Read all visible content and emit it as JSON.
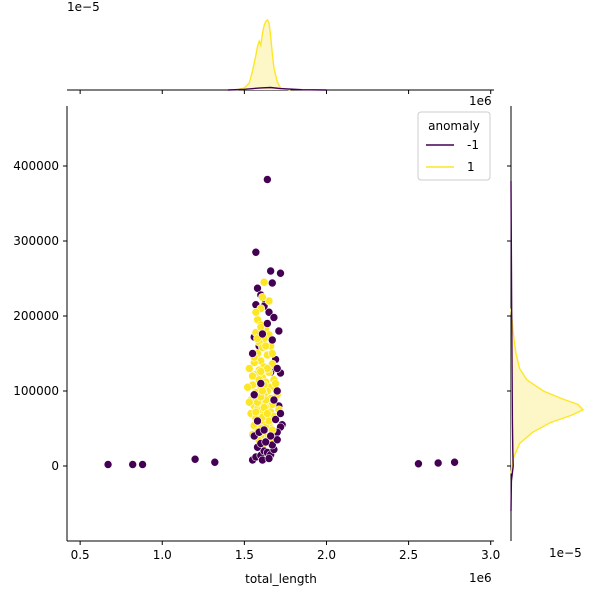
{
  "chart_data": {
    "type": "scatter",
    "title": "",
    "xlabel": "total_length",
    "ylabel": "",
    "x_multiplier": "1e6",
    "y_multiplier_top": "1e6",
    "marginal_multiplier_top": "1e−5",
    "marginal_multiplier_right": "1e−5",
    "xlim": [
      0.42,
      3.02
    ],
    "ylim": [
      -100000,
      480000
    ],
    "xticks": [
      "0.5",
      "1.0",
      "1.5",
      "2.0",
      "2.5",
      "3.0"
    ],
    "xtick_values": [
      0.5,
      1.0,
      1.5,
      2.0,
      2.5,
      3.0
    ],
    "yticks": [
      "0",
      "100000",
      "200000",
      "300000",
      "400000"
    ],
    "ytick_values": [
      0,
      100000,
      200000,
      300000,
      400000
    ],
    "legend": {
      "title": "anomaly",
      "entries": [
        {
          "label": "-1",
          "color": "#440154"
        },
        {
          "label": "1",
          "color": "#fde725"
        }
      ],
      "position": "top-right"
    },
    "colors": {
      "anomaly": "#440154",
      "normal": "#fde725",
      "normal_fill": "#fdf6c6",
      "point_edge": "#ffffff"
    },
    "anomaly_points": [
      [
        0.67,
        2000
      ],
      [
        0.82,
        2000
      ],
      [
        0.88,
        2000
      ],
      [
        1.2,
        9000
      ],
      [
        1.32,
        5000
      ],
      [
        2.56,
        3000
      ],
      [
        2.68,
        4000
      ],
      [
        2.78,
        5000
      ],
      [
        1.64,
        382000
      ],
      [
        1.57,
        285000
      ],
      [
        1.72,
        257000
      ],
      [
        1.66,
        260000
      ],
      [
        1.67,
        244000
      ],
      [
        1.58,
        237000
      ],
      [
        1.6,
        228000
      ],
      [
        1.63,
        220000
      ],
      [
        1.62,
        213000
      ],
      [
        1.57,
        215000
      ],
      [
        1.65,
        205000
      ],
      [
        1.68,
        198000
      ],
      [
        1.71,
        180000
      ],
      [
        1.56,
        172000
      ],
      [
        1.59,
        160000
      ],
      [
        1.69,
        142000
      ],
      [
        1.66,
        125000
      ],
      [
        1.72,
        124000
      ],
      [
        1.71,
        80000
      ],
      [
        1.73,
        55000
      ],
      [
        1.72,
        52000
      ],
      [
        1.7,
        45000
      ],
      [
        1.55,
        8000
      ],
      [
        1.57,
        12000
      ],
      [
        1.6,
        14000
      ],
      [
        1.62,
        20000
      ],
      [
        1.64,
        18000
      ],
      [
        1.66,
        15000
      ],
      [
        1.68,
        22000
      ],
      [
        1.58,
        25000
      ],
      [
        1.6,
        30000
      ],
      [
        1.67,
        28000
      ],
      [
        1.7,
        35000
      ],
      [
        1.56,
        40000
      ],
      [
        1.61,
        8000
      ],
      [
        1.65,
        10000
      ],
      [
        1.63,
        32000
      ],
      [
        1.59,
        45000
      ],
      [
        1.69,
        62000
      ],
      [
        1.72,
        70000
      ],
      [
        1.7,
        100000
      ],
      [
        1.56,
        95000
      ],
      [
        1.6,
        110000
      ],
      [
        1.64,
        190000
      ],
      [
        1.61,
        176000
      ],
      [
        1.67,
        168000
      ],
      [
        1.55,
        150000
      ],
      [
        1.68,
        88000
      ],
      [
        1.58,
        60000
      ],
      [
        1.66,
        40000
      ],
      [
        1.62,
        48000
      ],
      [
        1.7,
        130000
      ]
    ],
    "normal_points": [
      [
        1.58,
        195000
      ],
      [
        1.6,
        188000
      ],
      [
        1.63,
        182000
      ],
      [
        1.57,
        178000
      ],
      [
        1.65,
        175000
      ],
      [
        1.62,
        170000
      ],
      [
        1.59,
        165000
      ],
      [
        1.61,
        158000
      ],
      [
        1.66,
        160000
      ],
      [
        1.58,
        150000
      ],
      [
        1.64,
        148000
      ],
      [
        1.6,
        140000
      ],
      [
        1.56,
        138000
      ],
      [
        1.67,
        136000
      ],
      [
        1.62,
        132000
      ],
      [
        1.59,
        128000
      ],
      [
        1.65,
        125000
      ],
      [
        1.53,
        130000
      ],
      [
        1.57,
        122000
      ],
      [
        1.61,
        118000
      ],
      [
        1.68,
        115000
      ],
      [
        1.63,
        112000
      ],
      [
        1.58,
        110000
      ],
      [
        1.55,
        108000
      ],
      [
        1.66,
        105000
      ],
      [
        1.6,
        102000
      ],
      [
        1.64,
        100000
      ],
      [
        1.57,
        98000
      ],
      [
        1.62,
        95000
      ],
      [
        1.69,
        92000
      ],
      [
        1.59,
        90000
      ],
      [
        1.54,
        88000
      ],
      [
        1.65,
        86000
      ],
      [
        1.61,
        84000
      ],
      [
        1.67,
        82000
      ],
      [
        1.56,
        80000
      ],
      [
        1.63,
        78000
      ],
      [
        1.58,
        76000
      ],
      [
        1.6,
        74000
      ],
      [
        1.66,
        72000
      ],
      [
        1.54,
        70000
      ],
      [
        1.62,
        68000
      ],
      [
        1.68,
        66000
      ],
      [
        1.57,
        64000
      ],
      [
        1.64,
        62000
      ],
      [
        1.59,
        60000
      ],
      [
        1.61,
        58000
      ],
      [
        1.65,
        56000
      ],
      [
        1.56,
        54000
      ],
      [
        1.63,
        52000
      ],
      [
        1.6,
        50000
      ],
      [
        1.67,
        48000
      ],
      [
        1.58,
        46000
      ],
      [
        1.62,
        44000
      ],
      [
        1.55,
        42000
      ],
      [
        1.64,
        40000
      ],
      [
        1.6,
        38000
      ],
      [
        1.66,
        36000
      ],
      [
        1.59,
        34000
      ],
      [
        1.62,
        30000
      ],
      [
        1.6,
        210000
      ],
      [
        1.62,
        245000
      ],
      [
        1.65,
        220000
      ],
      [
        1.57,
        205000
      ],
      [
        1.61,
        225000
      ],
      [
        1.53,
        85000
      ],
      [
        1.52,
        105000
      ],
      [
        1.7,
        95000
      ],
      [
        1.71,
        75000
      ],
      [
        1.69,
        110000
      ],
      [
        1.55,
        120000
      ],
      [
        1.67,
        150000
      ],
      [
        1.63,
        160000
      ],
      [
        1.58,
        170000
      ],
      [
        1.6,
        185000
      ],
      [
        1.64,
        130000
      ],
      [
        1.56,
        145000
      ],
      [
        1.62,
        108000
      ],
      [
        1.66,
        90000
      ],
      [
        1.59,
        115000
      ],
      [
        1.61,
        65000
      ],
      [
        1.57,
        72000
      ],
      [
        1.65,
        60000
      ],
      [
        1.63,
        88000
      ],
      [
        1.6,
        126000
      ],
      [
        1.58,
        85000
      ],
      [
        1.62,
        78000
      ],
      [
        1.64,
        70000
      ],
      [
        1.6,
        92000
      ],
      [
        1.61,
        100000
      ]
    ],
    "kde_top": {
      "normal": [
        [
          1.45,
          0.0
        ],
        [
          1.5,
          0.03
        ],
        [
          1.53,
          0.1
        ],
        [
          1.55,
          0.28
        ],
        [
          1.57,
          0.5
        ],
        [
          1.58,
          0.62
        ],
        [
          1.59,
          0.7
        ],
        [
          1.6,
          0.64
        ],
        [
          1.61,
          0.8
        ],
        [
          1.62,
          0.92
        ],
        [
          1.63,
          0.98
        ],
        [
          1.64,
          1.0
        ],
        [
          1.65,
          0.96
        ],
        [
          1.66,
          0.78
        ],
        [
          1.67,
          0.52
        ],
        [
          1.68,
          0.32
        ],
        [
          1.7,
          0.12
        ],
        [
          1.72,
          0.03
        ],
        [
          1.78,
          0.0
        ]
      ],
      "anomaly": [
        [
          1.4,
          0.0
        ],
        [
          1.5,
          0.01
        ],
        [
          1.6,
          0.03
        ],
        [
          1.66,
          0.035
        ],
        [
          1.72,
          0.02
        ],
        [
          1.85,
          0.005
        ],
        [
          2.0,
          0.0
        ]
      ]
    },
    "kde_right": {
      "normal": [
        [
          -10000,
          0.0
        ],
        [
          10000,
          0.03
        ],
        [
          30000,
          0.12
        ],
        [
          45000,
          0.3
        ],
        [
          58000,
          0.55
        ],
        [
          68000,
          0.85
        ],
        [
          75000,
          1.0
        ],
        [
          82000,
          0.93
        ],
        [
          90000,
          0.7
        ],
        [
          100000,
          0.45
        ],
        [
          115000,
          0.22
        ],
        [
          130000,
          0.12
        ],
        [
          150000,
          0.07
        ],
        [
          170000,
          0.04
        ],
        [
          190000,
          0.02
        ],
        [
          210000,
          0.0
        ]
      ],
      "anomaly": [
        [
          -60000,
          0.0
        ],
        [
          -20000,
          0.005
        ],
        [
          0,
          0.03
        ],
        [
          20000,
          0.025
        ],
        [
          60000,
          0.02
        ],
        [
          120000,
          0.015
        ],
        [
          200000,
          0.01
        ],
        [
          300000,
          0.004
        ],
        [
          380000,
          0.0
        ]
      ]
    }
  }
}
